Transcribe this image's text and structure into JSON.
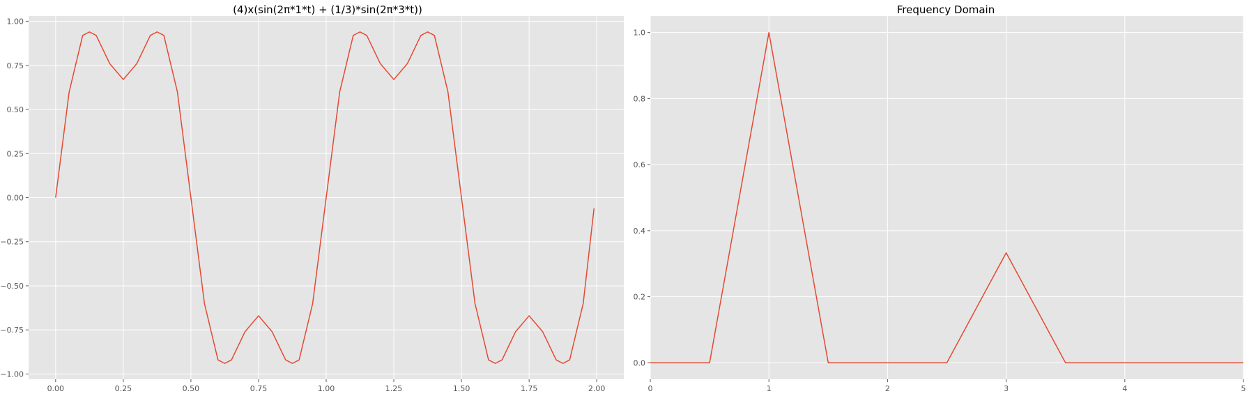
{
  "colors": {
    "plot_background": "#E5E5E5",
    "grid": "#FFFFFF",
    "series_line": "#E24A33",
    "tick_text": "#555555",
    "title_text": "#000000"
  },
  "chart_data": [
    {
      "type": "line",
      "title": "(4)x(sin(2π*1*t) + (1/3)*sin(2π*3*t))",
      "xlabel": "",
      "ylabel": "",
      "grid": true,
      "xlim": [
        -0.1,
        2.1
      ],
      "ylim": [
        -1.03,
        1.03
      ],
      "xticks": [
        0.0,
        0.25,
        0.5,
        0.75,
        1.0,
        1.25,
        1.5,
        1.75,
        2.0
      ],
      "xtick_labels": [
        "0.00",
        "0.25",
        "0.50",
        "0.75",
        "1.00",
        "1.25",
        "1.50",
        "1.75",
        "2.00"
      ],
      "yticks": [
        1.0,
        0.75,
        0.5,
        0.25,
        0.0,
        -0.25,
        -0.5,
        -0.75,
        -1.0
      ],
      "ytick_labels": [
        "1.00",
        "0.75",
        "0.50",
        "0.25",
        "0.00",
        "−0.25",
        "−0.50",
        "−0.75",
        "−1.00"
      ],
      "series": [
        {
          "x": [
            0.0,
            0.05,
            0.1,
            0.125,
            0.15,
            0.2,
            0.25,
            0.3,
            0.35,
            0.375,
            0.4,
            0.45,
            0.5,
            0.55,
            0.6,
            0.625,
            0.65,
            0.7,
            0.75,
            0.8,
            0.85,
            0.875,
            0.9,
            0.95,
            1.0,
            1.05,
            1.1,
            1.125,
            1.15,
            1.2,
            1.25,
            1.3,
            1.35,
            1.375,
            1.4,
            1.45,
            1.5,
            1.55,
            1.6,
            1.625,
            1.65,
            1.7,
            1.75,
            1.8,
            1.85,
            1.875,
            1.9,
            1.95,
            1.99
          ],
          "y": [
            0.0,
            0.6,
            0.92,
            0.94,
            0.92,
            0.76,
            0.67,
            0.76,
            0.92,
            0.94,
            0.92,
            0.6,
            0.0,
            -0.6,
            -0.92,
            -0.94,
            -0.92,
            -0.76,
            -0.67,
            -0.76,
            -0.92,
            -0.94,
            -0.92,
            -0.6,
            0.0,
            0.6,
            0.92,
            0.94,
            0.92,
            0.76,
            0.67,
            0.76,
            0.92,
            0.94,
            0.92,
            0.6,
            0.0,
            -0.6,
            -0.92,
            -0.94,
            -0.92,
            -0.76,
            -0.67,
            -0.76,
            -0.92,
            -0.94,
            -0.92,
            -0.6,
            -0.06
          ]
        }
      ]
    },
    {
      "type": "line",
      "title": "Frequency Domain",
      "xlabel": "",
      "ylabel": "",
      "grid": true,
      "xlim": [
        0,
        5
      ],
      "ylim": [
        -0.05,
        1.05
      ],
      "xticks": [
        0,
        1,
        2,
        3,
        4,
        5
      ],
      "xtick_labels": [
        "0",
        "1",
        "2",
        "3",
        "4",
        "5"
      ],
      "yticks": [
        1.0,
        0.8,
        0.6,
        0.4,
        0.2,
        0.0
      ],
      "ytick_labels": [
        "1.0",
        "0.8",
        "0.6",
        "0.4",
        "0.2",
        "0.0"
      ],
      "series": [
        {
          "x": [
            0.0,
            0.5,
            1.0,
            1.5,
            2.0,
            2.5,
            3.0,
            3.5,
            4.0,
            4.5,
            5.0
          ],
          "y": [
            0.0,
            0.0,
            1.0,
            0.0,
            0.0,
            0.0,
            0.333,
            0.0,
            0.0,
            0.0,
            0.0
          ]
        }
      ]
    }
  ]
}
